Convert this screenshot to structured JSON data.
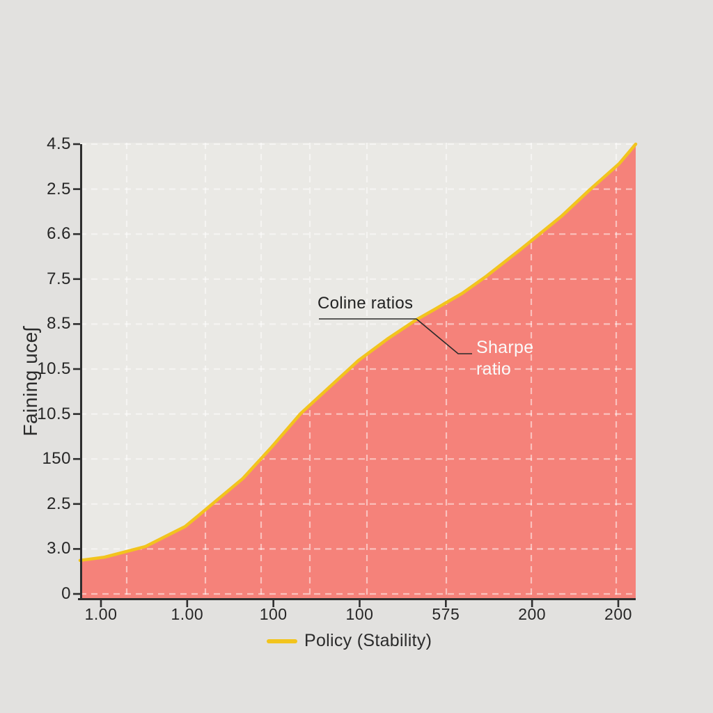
{
  "chart_data": {
    "type": "area",
    "title": "",
    "y_axis_title": "Faining uceʃ",
    "x_tick_labels": [
      "1.00",
      "1.00",
      "100",
      "100",
      "575",
      "200",
      "200"
    ],
    "y_tick_labels": [
      "4.5",
      "2.5",
      "6.6",
      "7.5",
      "8.5",
      "10.5",
      "10.5",
      "150",
      "2.5",
      "3.0",
      "0"
    ],
    "grid": "dashed-white",
    "legend_position": "bottom-center",
    "series": [
      {
        "name": "Policy (Stability)",
        "line_color": "#f2c41d",
        "fill_color": "#f5827a",
        "points_frac": [
          [
            0.0,
            0.087
          ],
          [
            0.044,
            0.094
          ],
          [
            0.117,
            0.117
          ],
          [
            0.189,
            0.161
          ],
          [
            0.211,
            0.183
          ],
          [
            0.293,
            0.266
          ],
          [
            0.345,
            0.335
          ],
          [
            0.397,
            0.408
          ],
          [
            0.449,
            0.466
          ],
          [
            0.501,
            0.524
          ],
          [
            0.553,
            0.571
          ],
          [
            0.605,
            0.613
          ],
          [
            0.637,
            0.635
          ],
          [
            0.688,
            0.671
          ],
          [
            0.731,
            0.708
          ],
          [
            0.792,
            0.766
          ],
          [
            0.866,
            0.839
          ],
          [
            0.917,
            0.897
          ],
          [
            0.97,
            0.954
          ],
          [
            1.0,
            0.997
          ]
        ]
      }
    ],
    "annotations": [
      {
        "id": "coline",
        "text": "Coline ratios",
        "color": "#222222"
      },
      {
        "id": "sharpe",
        "text": "Sharpe ratio",
        "color": "#fafafa"
      }
    ],
    "legend": {
      "label": "Policy (Stability)",
      "swatch_color": "#f2c41d"
    }
  },
  "colors": {
    "page_bg": "#e2e1df",
    "plot_bg": "#eae9e5",
    "axis": "#2e2e2e",
    "grid": "rgba(255,255,255,0.5)",
    "tick_text": "#262626"
  }
}
